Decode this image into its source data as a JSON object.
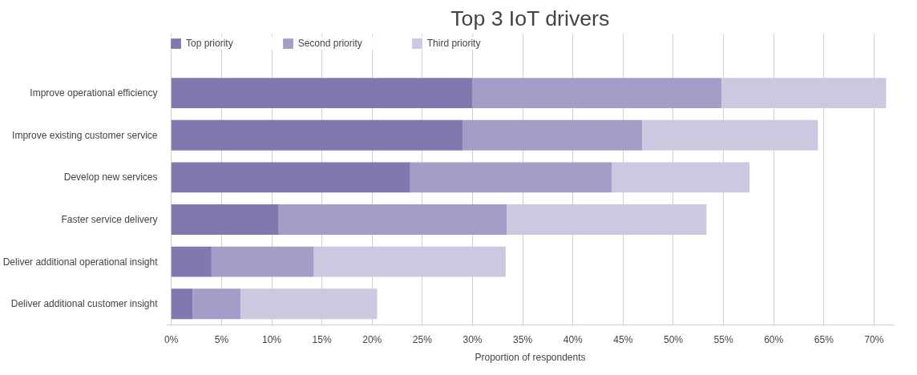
{
  "chart_data": {
    "type": "bar",
    "title": "Top 3 IoT drivers",
    "xlabel": "Proportion of respondents",
    "orientation": "horizontal",
    "stacked": true,
    "categories": [
      "Improve operational efficiency",
      "Improve existing customer service",
      "Develop new services",
      "Faster service delivery",
      "Deliver additional operational insight",
      "Deliver additional customer insight"
    ],
    "series": [
      {
        "name": "Top priority",
        "color": "#8278b0",
        "values": [
          30.0,
          29.0,
          23.8,
          10.7,
          4.0,
          2.1
        ]
      },
      {
        "name": "Second priority",
        "color": "#a59cc8",
        "values": [
          24.8,
          17.9,
          20.1,
          22.7,
          10.2,
          4.8
        ]
      },
      {
        "name": "Third priority",
        "color": "#cdc8e0",
        "values": [
          16.4,
          17.5,
          13.7,
          19.9,
          19.1,
          13.6
        ]
      }
    ],
    "xlim": [
      -0.5,
      72
    ],
    "xticks": [
      {
        "value": 0,
        "label": "0%"
      },
      {
        "value": 5,
        "label": "5%"
      },
      {
        "value": 10,
        "label": "10%"
      },
      {
        "value": 15,
        "label": "15%"
      },
      {
        "value": 20,
        "label": "20%"
      },
      {
        "value": 25,
        "label": "25%"
      },
      {
        "value": 30,
        "label": "30%"
      },
      {
        "value": 35,
        "label": "35%"
      },
      {
        "value": 40,
        "label": "40%"
      },
      {
        "value": 45,
        "label": "45%"
      },
      {
        "value": 50,
        "label": "50%"
      },
      {
        "value": 55,
        "label": "55%"
      },
      {
        "value": 60,
        "label": "60%"
      },
      {
        "value": 65,
        "label": "65%"
      },
      {
        "value": 70,
        "label": "70%"
      }
    ],
    "grid": "x",
    "legend": "top"
  }
}
